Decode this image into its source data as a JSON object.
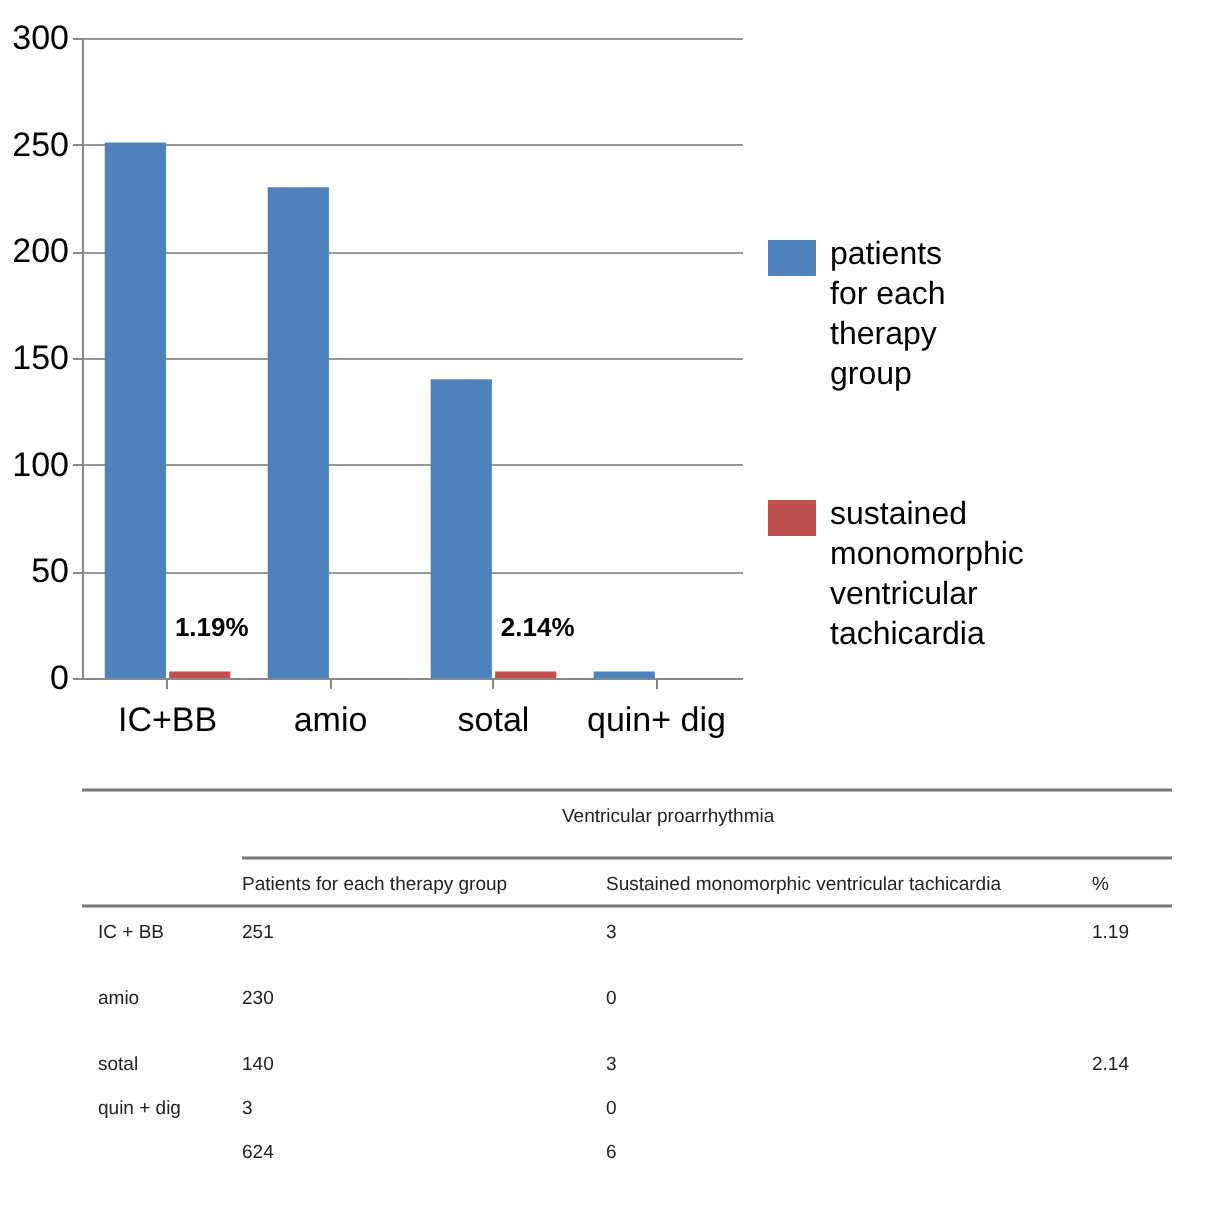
{
  "chart_data": {
    "type": "bar",
    "categories": [
      "IC+BB",
      "amio",
      "sotal",
      "quin+ dig"
    ],
    "series": [
      {
        "name": "patients for each therapy group",
        "color": "#4f81bd",
        "values": [
          251,
          230,
          140,
          3
        ]
      },
      {
        "name": "sustained monomorphic ventricular tachicardia",
        "color": "#c0504d",
        "values": [
          3,
          0,
          3,
          0
        ]
      }
    ],
    "ylim": [
      0,
      300
    ],
    "yticks": [
      0,
      50,
      100,
      150,
      200,
      250,
      300
    ],
    "grid": "y",
    "legend": "right",
    "annotations": [
      "Ventricular proarrhythmia",
      "Patients for each therapy group",
      "Sustained monomorphic  ventricular tachicardia",
      "%",
      "IC + BB",
      "251",
      "3",
      "1.19",
      "amio",
      "230",
      "0",
      "sotal",
      "140",
      "3",
      "2.14",
      "quin + dig",
      "3",
      "0",
      "624",
      "6",
      {
        "text": "1.19%",
        "x": "IC+BB",
        "y": 3
      },
      {
        "text": "2.14%",
        "x": "sotal",
        "y": 3
      }
    ]
  }
}
